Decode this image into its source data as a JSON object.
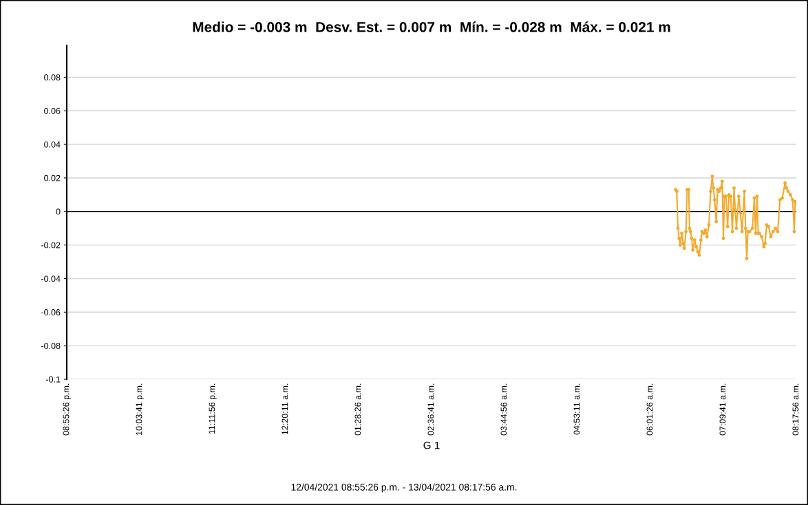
{
  "chart_data": {
    "type": "line",
    "title": "Medio = -0.003 m  Desv. Est. = 0.007 m  Mín. = -0.028 m  Máx. = 0.021 m",
    "xlabel": "G 1",
    "annotations": [
      "12/04/2021 08:55:26 p.m. - 13/04/2021 08:17:56 a.m."
    ],
    "x": [
      "2021-04-13T06:25:00",
      "2021-04-13T06:26:06",
      "2021-04-13T06:27:12",
      "2021-04-13T06:28:18",
      "2021-04-13T06:29:18",
      "2021-04-13T06:30:48",
      "2021-04-13T06:32:06",
      "2021-04-13T06:33:12",
      "2021-04-13T06:34:42",
      "2021-04-13T06:35:48",
      "2021-04-13T06:37:18",
      "2021-04-13T06:38:06",
      "2021-04-13T06:39:00",
      "2021-04-13T06:40:00",
      "2021-04-13T06:41:06",
      "2021-04-13T06:42:48",
      "2021-04-13T06:44:18",
      "2021-04-13T06:45:48",
      "2021-04-13T06:47:12",
      "2021-04-13T06:48:42",
      "2021-04-13T06:49:42",
      "2021-04-13T06:51:24",
      "2021-04-13T06:52:54",
      "2021-04-13T06:54:24",
      "2021-04-13T06:56:12",
      "2021-04-13T06:57:48",
      "2021-04-13T06:59:18",
      "2021-04-13T07:00:24",
      "2021-04-13T07:01:30",
      "2021-04-13T07:03:00",
      "2021-04-13T07:04:18",
      "2021-04-13T07:05:48",
      "2021-04-13T07:07:18",
      "2021-04-13T07:08:36",
      "2021-04-13T07:09:42",
      "2021-04-13T07:10:42",
      "2021-04-13T07:12:12",
      "2021-04-13T07:13:42",
      "2021-04-13T07:15:00",
      "2021-04-13T07:16:36",
      "2021-04-13T07:18:06",
      "2021-04-13T07:19:42",
      "2021-04-13T07:20:48",
      "2021-04-13T07:21:54",
      "2021-04-13T07:24:06",
      "2021-04-13T07:25:42",
      "2021-04-13T07:27:12",
      "2021-04-13T07:29:24",
      "2021-04-13T07:30:30",
      "2021-04-13T07:31:36",
      "2021-04-13T07:32:36",
      "2021-04-13T07:34:18",
      "2021-04-13T07:36:54",
      "2021-04-13T07:38:36",
      "2021-04-13T07:39:54",
      "2021-04-13T07:41:12",
      "2021-04-13T07:42:18",
      "2021-04-13T07:43:24",
      "2021-04-13T07:45:30",
      "2021-04-13T07:47:36",
      "2021-04-13T07:48:42",
      "2021-04-13T07:50:12",
      "2021-04-13T07:52:00",
      "2021-04-13T07:54:06",
      "2021-04-13T07:56:12",
      "2021-04-13T07:58:24",
      "2021-04-13T08:00:30",
      "2021-04-13T08:02:42",
      "2021-04-13T08:04:48",
      "2021-04-13T08:07:24",
      "2021-04-13T08:08:42",
      "2021-04-13T08:10:12",
      "2021-04-13T08:12:24",
      "2021-04-13T08:14:30",
      "2021-04-13T08:16:00",
      "2021-04-13T08:16:54",
      "2021-04-13T08:17:42"
    ],
    "series": [
      {
        "color": "#f4a92e",
        "values": [
          0.013,
          0.012,
          -0.01,
          -0.016,
          -0.02,
          -0.013,
          -0.019,
          -0.022,
          -0.012,
          0.013,
          0.013,
          -0.01,
          -0.012,
          -0.016,
          -0.023,
          -0.017,
          -0.021,
          -0.024,
          -0.026,
          -0.017,
          -0.012,
          -0.013,
          -0.011,
          -0.015,
          -0.008,
          0.012,
          0.021,
          0.014,
          0.007,
          -0.006,
          0.013,
          0.012,
          0.014,
          0.018,
          -0.016,
          0.009,
          0.009,
          -0.009,
          0.01,
          0.009,
          -0.012,
          0.014,
          0.001,
          -0.01,
          0.009,
          -0.001,
          -0.012,
          0.012,
          -0.01,
          -0.028,
          -0.012,
          -0.012,
          -0.01,
          0.008,
          -0.013,
          0.009,
          -0.013,
          -0.013,
          -0.015,
          -0.021,
          -0.019,
          -0.008,
          -0.009,
          -0.015,
          -0.012,
          -0.01,
          -0.012,
          0.007,
          0.008,
          0.017,
          0.014,
          0.012,
          0.01,
          0.007,
          -0.012,
          0.006,
          0.005
        ]
      }
    ],
    "xlim": [
      "2021-04-12T20:55:26",
      "2021-04-13T08:17:56"
    ],
    "xticks": [
      {
        "value": "2021-04-12T20:55:26",
        "label": "08:55:26 p.m."
      },
      {
        "value": "2021-04-12T22:03:41",
        "label": "10:03:41 p.m."
      },
      {
        "value": "2021-04-12T23:11:56",
        "label": "11:11:56 p.m."
      },
      {
        "value": "2021-04-13T00:20:11",
        "label": "12:20:11 a.m."
      },
      {
        "value": "2021-04-13T01:28:26",
        "label": "01:28:26 a.m."
      },
      {
        "value": "2021-04-13T02:36:41",
        "label": "02:36:41 a.m."
      },
      {
        "value": "2021-04-13T03:44:56",
        "label": "03:44:56 a.m."
      },
      {
        "value": "2021-04-13T04:53:11",
        "label": "04:53:11 a.m."
      },
      {
        "value": "2021-04-13T06:01:26",
        "label": "06:01:26 a.m."
      },
      {
        "value": "2021-04-13T07:09:41",
        "label": "07:09:41 a.m."
      },
      {
        "value": "2021-04-13T08:17:56",
        "label": "08:17:56 a.m."
      }
    ],
    "ylim": [
      -0.1,
      0.099
    ],
    "yticks": [
      -0.1,
      -0.08,
      -0.06,
      -0.04,
      -0.02,
      0,
      0.02,
      0.04,
      0.06,
      0.08
    ],
    "ref_lines": [
      {
        "axis": "y",
        "value": 0,
        "color": "#000000"
      }
    ],
    "grid": "y",
    "marker": "circle",
    "line_style": "solid"
  }
}
